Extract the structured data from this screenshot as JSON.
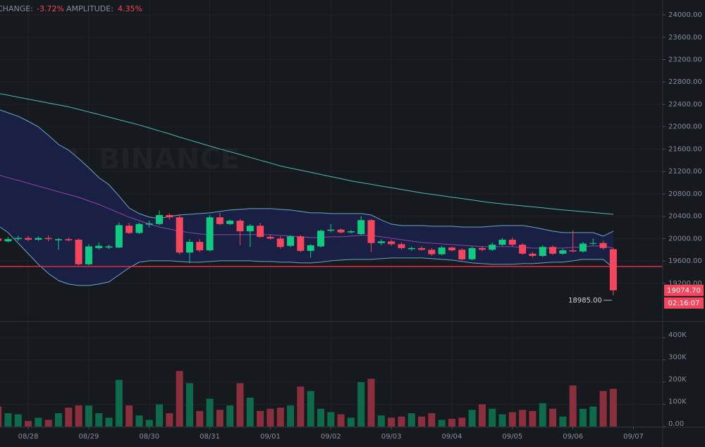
{
  "chart_data": {
    "type": "candlestick",
    "header": {
      "change_label": "CHANGE:",
      "change": "-3.72%",
      "amplitude_label": "AMPLITUDE:",
      "amplitude": "4.35%"
    },
    "watermark": "BINANCE",
    "up_color": "#0ecb81",
    "down_color": "#f6465d",
    "volume_up_color": "#0d6b4c",
    "volume_down_color": "#8c2f3d",
    "grid": true,
    "x": [
      -3,
      -2,
      -1,
      0,
      1,
      2,
      3,
      4,
      5,
      6,
      7,
      8,
      9,
      10,
      11,
      12,
      13,
      14,
      15,
      16,
      17,
      18,
      19,
      20,
      21,
      22,
      23,
      24,
      25,
      26,
      27,
      28,
      29,
      30,
      31,
      32,
      33,
      34,
      35,
      36,
      37,
      38,
      39,
      40,
      41,
      42,
      43,
      44,
      45,
      46,
      47,
      48,
      49,
      50,
      51,
      52,
      53,
      54,
      55,
      56,
      57,
      58
    ],
    "open": [
      20000,
      19950,
      19990,
      20010,
      19980,
      20010,
      19970,
      19990,
      19980,
      19540,
      19830,
      19840,
      19840,
      20230,
      20100,
      20250,
      20260,
      20420,
      20380,
      19750,
      19940,
      19790,
      20380,
      20260,
      20320,
      20130,
      20230,
      20030,
      20000,
      19870,
      20040,
      19780,
      19860,
      20140,
      20160,
      20110,
      20080,
      20330,
      19920,
      19950,
      19900,
      19810,
      19830,
      19800,
      19720,
      19840,
      19800,
      19630,
      19830,
      19800,
      19890,
      19980,
      19890,
      19730,
      19690,
      19850,
      19730,
      19790,
      19770,
      19910,
      19920,
      19810
    ],
    "high": [
      20060,
      20030,
      20050,
      20050,
      20040,
      20060,
      20010,
      20020,
      20000,
      19900,
      19930,
      19890,
      20290,
      20280,
      20280,
      20320,
      20500,
      20450,
      20420,
      19990,
      19990,
      20420,
      20460,
      20340,
      20350,
      20260,
      20280,
      20080,
      20040,
      20060,
      20060,
      19900,
      20160,
      20260,
      20180,
      20150,
      20400,
      20350,
      19990,
      19980,
      19930,
      19860,
      19860,
      19830,
      19870,
      19860,
      19830,
      19860,
      19870,
      19930,
      20010,
      20020,
      19920,
      19760,
      19880,
      19880,
      19820,
      20150,
      19940,
      20000,
      19960,
      19830
    ],
    "low": [
      19900,
      19930,
      19960,
      19950,
      19960,
      19950,
      19800,
      19950,
      19520,
      19520,
      19800,
      19810,
      19830,
      20080,
      20080,
      20200,
      20240,
      20340,
      19720,
      19560,
      19760,
      19770,
      20240,
      20240,
      19880,
      19850,
      20010,
      19980,
      19820,
      19850,
      19760,
      19660,
      19840,
      20110,
      20090,
      20090,
      20060,
      19760,
      19880,
      19870,
      19800,
      19780,
      19780,
      19690,
      19700,
      19770,
      19610,
      19610,
      19770,
      19780,
      19870,
      19860,
      19710,
      19660,
      19670,
      19710,
      19710,
      19750,
      19750,
      19880,
      19800,
      18985
    ],
    "close": [
      19960,
      19990,
      20010,
      19980,
      20010,
      19990,
      19990,
      19970,
      19540,
      19860,
      19870,
      19860,
      20240,
      20100,
      20260,
      20270,
      20420,
      20380,
      19750,
      19940,
      19790,
      20380,
      20260,
      20320,
      20130,
      20230,
      20030,
      20000,
      19850,
      20040,
      19780,
      19880,
      20140,
      20160,
      20110,
      20130,
      20330,
      19920,
      19950,
      19900,
      19830,
      19830,
      19800,
      19720,
      19840,
      19790,
      19630,
      19830,
      19800,
      19890,
      19980,
      19890,
      19730,
      19690,
      19850,
      19730,
      19790,
      19770,
      19910,
      19920,
      19830,
      19074.7
    ],
    "volume": [
      90000,
      60000,
      55000,
      25000,
      40000,
      30000,
      60000,
      85000,
      95000,
      95000,
      60000,
      40000,
      210000,
      95000,
      50000,
      30000,
      100000,
      60000,
      250000,
      195000,
      70000,
      125000,
      75000,
      95000,
      195000,
      130000,
      70000,
      80000,
      85000,
      95000,
      180000,
      160000,
      80000,
      65000,
      55000,
      40000,
      200000,
      215000,
      50000,
      40000,
      45000,
      60000,
      45000,
      60000,
      30000,
      35000,
      40000,
      75000,
      100000,
      80000,
      55000,
      65000,
      75000,
      70000,
      105000,
      80000,
      45000,
      185000,
      80000,
      90000,
      160000,
      170000
    ],
    "overlays": [
      {
        "color": "#6aa6c9",
        "values": [
          22312,
          22249,
          22186,
          22097,
          21997,
          21845,
          21682,
          21581,
          21430,
          21266,
          21090,
          20964,
          20762,
          20548,
          20447,
          20384,
          20359,
          20396,
          20422,
          20434,
          20447,
          20460,
          20485,
          20510,
          20522,
          20535,
          20535,
          20535,
          20522,
          20510,
          20485,
          20460,
          20460,
          20447,
          20447,
          20447,
          20447,
          20422,
          20334,
          20258,
          20233,
          20233,
          20233,
          20220,
          20220,
          20220,
          20207,
          20207,
          20207,
          20220,
          20233,
          20233,
          20233,
          20207,
          20170,
          20132,
          20107,
          20107,
          20107,
          20107,
          20044,
          20132
        ]
      },
      {
        "color": "#6aa6c9",
        "values": [
          20233,
          20107,
          19918,
          19729,
          19540,
          19376,
          19250,
          19187,
          19162,
          19162,
          19187,
          19225,
          19351,
          19477,
          19577,
          19603,
          19603,
          19603,
          19590,
          19577,
          19577,
          19590,
          19603,
          19603,
          19603,
          19603,
          19590,
          19590,
          19577,
          19577,
          19565,
          19565,
          19577,
          19603,
          19615,
          19628,
          19628,
          19628,
          19640,
          19653,
          19653,
          19653,
          19653,
          19640,
          19628,
          19615,
          19590,
          19565,
          19552,
          19540,
          19540,
          19540,
          19552,
          19552,
          19565,
          19577,
          19577,
          19603,
          19628,
          19628,
          19628,
          19477
        ]
      },
      {
        "color": "#8b44a8",
        "values": [
          21140,
          21089,
          21039,
          20989,
          20938,
          20888,
          20837,
          20787,
          20737,
          20674,
          20611,
          20535,
          20459,
          20384,
          20321,
          20258,
          20207,
          20170,
          20132,
          20107,
          20082,
          20069,
          20069,
          20069,
          20069,
          20069,
          20069,
          20069,
          20056,
          20044,
          20031,
          20018,
          20018,
          20031,
          20031,
          20044,
          20056,
          20056,
          20031,
          20006,
          19981,
          19955,
          19930,
          19918,
          19905,
          19892,
          19880,
          19867,
          19855,
          19855,
          19855,
          19855,
          19842,
          19830,
          19830,
          19830,
          19830,
          19842,
          19855,
          19867,
          19867,
          19830
        ]
      },
      {
        "color": "#4fb8b2",
        "values": [
          22596,
          22563,
          22527,
          22493,
          22459,
          22423,
          22390,
          22356,
          22310,
          22264,
          22218,
          22172,
          22123,
          22078,
          22032,
          21977,
          21924,
          21871,
          21814,
          21761,
          21708,
          21655,
          21602,
          21552,
          21503,
          21450,
          21400,
          21351,
          21298,
          21259,
          21222,
          21185,
          21145,
          21108,
          21071,
          21031,
          21000,
          20970,
          20938,
          20908,
          20878,
          20848,
          20816,
          20791,
          20766,
          20740,
          20715,
          20691,
          20664,
          20640,
          20621,
          20602,
          20584,
          20567,
          20549,
          20530,
          20512,
          20497,
          20481,
          20466,
          20450,
          20435
        ]
      }
    ],
    "band_fill": "#1a2044",
    "hline": {
      "value": 19500,
      "color": "#e8283f"
    },
    "last_price_label": "19074.70",
    "countdown": "02:16:07",
    "low_label": "18985.00",
    "xlim": [
      -2.8,
      62.9
    ],
    "xticks": [
      {
        "value": 0,
        "label": "08/28"
      },
      {
        "value": 6,
        "label": "08/29"
      },
      {
        "value": 12,
        "label": "08/30"
      },
      {
        "value": 18,
        "label": "08/31"
      },
      {
        "value": 24,
        "label": "09/01"
      },
      {
        "value": 30,
        "label": "09/02"
      },
      {
        "value": 36,
        "label": "09/03"
      },
      {
        "value": 42,
        "label": "09/04"
      },
      {
        "value": 48,
        "label": "09/05"
      },
      {
        "value": 54,
        "label": "09/06"
      },
      {
        "value": 60,
        "label": "09/07"
      }
    ],
    "ylim": [
      18530,
      24265
    ],
    "yticks": [
      {
        "value": 24000,
        "label": "24000.00"
      },
      {
        "value": 23600,
        "label": "23600.00"
      },
      {
        "value": 23200,
        "label": "23200.00"
      },
      {
        "value": 22800,
        "label": "22800.00"
      },
      {
        "value": 22400,
        "label": "22400.00"
      },
      {
        "value": 22000,
        "label": "22000.00"
      },
      {
        "value": 21600,
        "label": "21600.00"
      },
      {
        "value": 21200,
        "label": "21200.00"
      },
      {
        "value": 20800,
        "label": "20800.00"
      },
      {
        "value": 20400,
        "label": "20400.00"
      },
      {
        "value": 20000,
        "label": "20000.00"
      },
      {
        "value": 19600,
        "label": "19600.00"
      },
      {
        "value": 19200,
        "label": "19200.00"
      }
    ],
    "volume_ylim": [
      0,
      460000
    ],
    "volume_yticks": [
      {
        "value": 400000,
        "label": "400K"
      },
      {
        "value": 300000,
        "label": "300K"
      },
      {
        "value": 200000,
        "label": "200K"
      },
      {
        "value": 100000,
        "label": "100K"
      },
      {
        "value": 0,
        "label": "0.00"
      }
    ]
  }
}
